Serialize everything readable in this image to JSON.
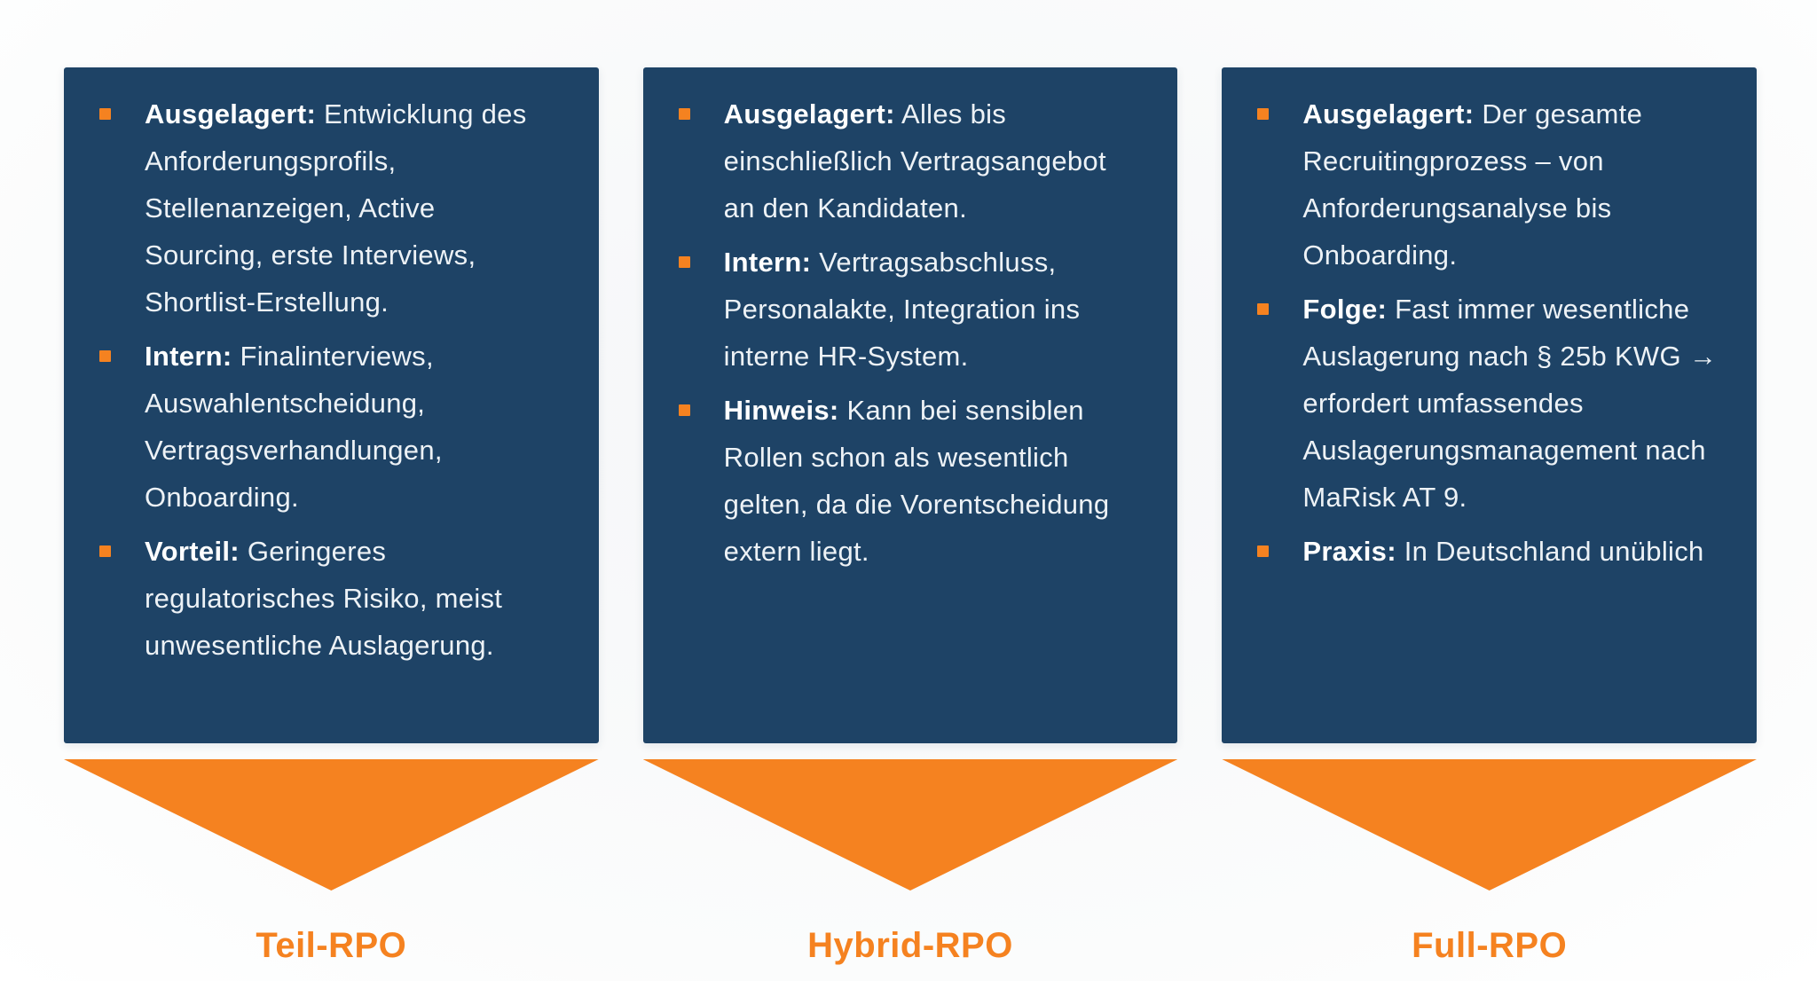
{
  "colors": {
    "card_bg": "#1e4366",
    "accent": "#f58220",
    "text": "#edf2f6",
    "text_bold": "#ffffff",
    "background": "#f5f6f8"
  },
  "columns": [
    {
      "label": "Teil-RPO",
      "bullets": [
        {
          "lead": "Ausgelagert:",
          "text": "Entwicklung des Anforderungsprofils, Stellenanzeigen, Active Sourcing, erste Interviews, Shortlist-Erstellung."
        },
        {
          "lead": "Intern:",
          "text": "Finalinterviews, Auswahlentscheidung, Vertragsverhandlungen, Onboarding."
        },
        {
          "lead": "Vorteil:",
          "text": "Geringeres regulatorisches Risiko, meist unwesentliche Auslagerung."
        }
      ]
    },
    {
      "label": "Hybrid-RPO",
      "bullets": [
        {
          "lead": "Ausgelagert:",
          "text": "Alles bis einschließlich Vertragsangebot an den Kandidaten."
        },
        {
          "lead": "Intern:",
          "text": "Vertragsabschluss, Personalakte, Integration ins interne HR-System."
        },
        {
          "lead": "Hinweis:",
          "text": "Kann bei sensiblen Rollen schon als wesentlich gelten, da die Vorentscheidung extern liegt."
        }
      ]
    },
    {
      "label": "Full-RPO",
      "bullets": [
        {
          "lead": "Ausgelagert:",
          "text": "Der gesamte Recruitingprozess – von Anforderungsanalyse bis Onboarding."
        },
        {
          "lead": "Folge:",
          "text": "Fast immer wesentliche Auslagerung nach § 25b KWG → erfordert umfassendes Auslagerungsmanagement nach MaRisk AT 9."
        },
        {
          "lead": "Praxis:",
          "text": "In Deutschland unüblich"
        }
      ]
    }
  ]
}
